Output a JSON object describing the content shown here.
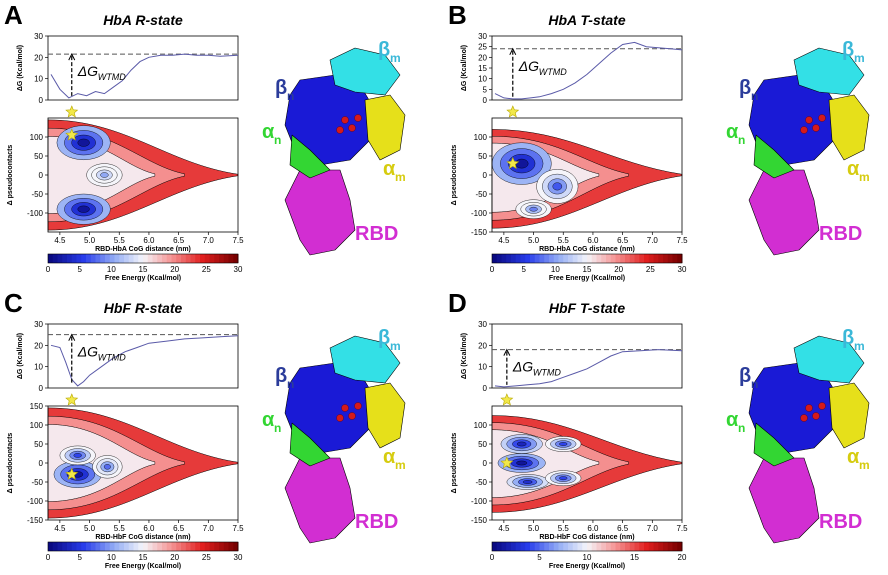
{
  "chart_data": [
    {
      "type": "line",
      "panel": "A",
      "title": "HbA R-state",
      "dg_label": "ΔG",
      "dg_sub": "WTMD",
      "dg_xlim": [
        4.3,
        7.5
      ],
      "dg_ylim": [
        0,
        30
      ],
      "dg_yticks": [
        0,
        10,
        20,
        30
      ],
      "dg_ylabel": "ΔG (Kcal/mol)",
      "dg_ref": 21.5,
      "dg_x": [
        4.35,
        4.5,
        4.65,
        4.8,
        4.95,
        5.1,
        5.25,
        5.4,
        5.55,
        5.7,
        5.85,
        6.0,
        6.2,
        6.4,
        6.6,
        6.8,
        7.0,
        7.2,
        7.5
      ],
      "dg_y": [
        12,
        5,
        1,
        3,
        2,
        4,
        3,
        6,
        9,
        14,
        18,
        20,
        21,
        21,
        21.5,
        21,
        21,
        20.5,
        21
      ],
      "star": [
        4.7,
        105
      ],
      "fe_xlim": [
        4.3,
        7.5
      ],
      "fe_xticks": [
        "4.5",
        "5.0",
        "5.5",
        "6.0",
        "6.5",
        "7.0",
        "7.5"
      ],
      "fe_xlabel": "RBD-HbA CoG distance (nm)",
      "fe_ylim": [
        -150,
        150
      ],
      "fe_yticks": [
        -100,
        -50,
        0,
        50,
        100
      ],
      "fe_ylabel": "Δ pseudocontacts",
      "fe_blobs": [
        [
          4.9,
          85,
          0.45,
          45,
          0.0
        ],
        [
          4.9,
          -90,
          0.45,
          40,
          0.0
        ],
        [
          5.25,
          0,
          0.3,
          30,
          1.0
        ]
      ],
      "fe_shape": {
        "tail_x": 7.5,
        "top": 145,
        "bottom": -145
      },
      "cbar_ticks": [
        0,
        5,
        10,
        15,
        20,
        25,
        30
      ],
      "cbar_label": "Free Energy (Kcal/mol)",
      "labels": {
        "b": "β",
        "b_sub": "m",
        "bn": "β",
        "bn_sub": "n",
        "an": "α",
        "an_sub": "n",
        "am": "α",
        "am_sub": "m",
        "rbd": "RBD"
      }
    },
    {
      "type": "line",
      "panel": "B",
      "title": "HbA T-state",
      "dg_label": "ΔG",
      "dg_sub": "WTMD",
      "dg_xlim": [
        4.3,
        7.5
      ],
      "dg_ylim": [
        0,
        30
      ],
      "dg_yticks": [
        0,
        5,
        10,
        15,
        20,
        25,
        30
      ],
      "dg_ylabel": "ΔG (Kcal/mol)",
      "dg_ref": 24,
      "dg_x": [
        4.35,
        4.5,
        4.65,
        4.8,
        4.95,
        5.1,
        5.3,
        5.5,
        5.7,
        5.9,
        6.1,
        6.3,
        6.5,
        6.7,
        6.9,
        7.1,
        7.3,
        7.5
      ],
      "dg_y": [
        3,
        1,
        0.5,
        0.5,
        1,
        1.5,
        3,
        5,
        8,
        12,
        17,
        22,
        26,
        27,
        25,
        24.5,
        24,
        23.5
      ],
      "star": [
        4.65,
        30
      ],
      "fe_xlim": [
        4.3,
        7.5
      ],
      "fe_xticks": [
        "4.5",
        "5.0",
        "5.5",
        "6.0",
        "6.5",
        "7.0",
        "7.5"
      ],
      "fe_xlabel": "RBD-HbA CoG distance (nm)",
      "fe_ylim": [
        -150,
        150
      ],
      "fe_yticks": [
        -150,
        -100,
        -50,
        0,
        50,
        100
      ],
      "fe_ylabel": "Δ pseudocontacts",
      "fe_blobs": [
        [
          4.8,
          30,
          0.5,
          55,
          0.0
        ],
        [
          5.4,
          -30,
          0.35,
          45,
          0.6
        ],
        [
          5.0,
          -90,
          0.3,
          25,
          0.8
        ]
      ],
      "fe_shape": {
        "tail_x": 7.5,
        "top": 120,
        "bottom": -140
      },
      "cbar_ticks": [
        0,
        5,
        10,
        15,
        20,
        25,
        30
      ],
      "cbar_label": "Free Energy (Kcal/mol)",
      "labels": {
        "b": "β",
        "b_sub": "m",
        "bn": "β",
        "bn_sub": "n",
        "an": "α",
        "an_sub": "n",
        "am": "α",
        "am_sub": "m",
        "rbd": "RBD"
      }
    },
    {
      "type": "line",
      "panel": "C",
      "title": "HbF R-state",
      "dg_label": "ΔG",
      "dg_sub": "WTMD",
      "dg_xlim": [
        4.3,
        7.5
      ],
      "dg_ylim": [
        0,
        30
      ],
      "dg_yticks": [
        0,
        10,
        20,
        30
      ],
      "dg_ylabel": "ΔG (Kcal/mol)",
      "dg_ref": 25,
      "dg_x": [
        4.35,
        4.5,
        4.6,
        4.7,
        4.8,
        4.9,
        5.0,
        5.2,
        5.4,
        5.6,
        5.8,
        6.0,
        6.3,
        6.6,
        6.9,
        7.2,
        7.5
      ],
      "dg_y": [
        20,
        19,
        12,
        4,
        1,
        3,
        6,
        10,
        14,
        17,
        19,
        21,
        22,
        23,
        23.5,
        24,
        24.5
      ],
      "star": [
        4.7,
        -30
      ],
      "fe_xlim": [
        4.3,
        7.5
      ],
      "fe_xticks": [
        "4.5",
        "5.0",
        "5.5",
        "6.0",
        "6.5",
        "7.0",
        "7.5"
      ],
      "fe_xlabel": "RBD-HbF CoG distance (nm)",
      "fe_ylim": [
        -150,
        150
      ],
      "fe_yticks": [
        -150,
        -100,
        -50,
        0,
        50,
        100,
        150
      ],
      "fe_ylabel": "Δ pseudocontacts",
      "fe_blobs": [
        [
          4.8,
          -30,
          0.4,
          35,
          0.0
        ],
        [
          4.8,
          20,
          0.3,
          25,
          0.5
        ],
        [
          5.3,
          -10,
          0.25,
          30,
          0.7
        ]
      ],
      "fe_shape": {
        "tail_x": 7.5,
        "top": 145,
        "bottom": -145
      },
      "cbar_ticks": [
        0,
        5,
        10,
        15,
        20,
        25,
        30
      ],
      "cbar_label": "Free Energy (Kcal/mol)",
      "labels": {
        "b": "β",
        "b_sub": "m",
        "bn": "β",
        "bn_sub": "n",
        "an": "α",
        "an_sub": "n",
        "am": "α",
        "am_sub": "m",
        "rbd": "RBD"
      }
    },
    {
      "type": "line",
      "panel": "D",
      "title": "HbF T-state",
      "dg_label": "ΔG",
      "dg_sub": "WTMD",
      "dg_xlim": [
        4.3,
        7.5
      ],
      "dg_ylim": [
        0,
        30
      ],
      "dg_yticks": [
        0,
        10,
        20,
        30
      ],
      "dg_ylabel": "ΔG (Kcal/mol)",
      "dg_ref": 18,
      "dg_x": [
        4.35,
        4.5,
        4.7,
        4.9,
        5.1,
        5.3,
        5.5,
        5.7,
        5.9,
        6.1,
        6.3,
        6.5,
        6.8,
        7.1,
        7.5
      ],
      "dg_y": [
        1,
        0.5,
        1,
        1.5,
        2,
        3,
        5,
        7,
        9,
        12,
        15,
        17,
        17.5,
        18,
        17.5
      ],
      "star": [
        4.55,
        0
      ],
      "fe_xlim": [
        4.3,
        7.5
      ],
      "fe_xticks": [
        "4.5",
        "5.0",
        "5.5",
        "6.0",
        "6.5",
        "7.0",
        "7.5"
      ],
      "fe_xlabel": "RBD-HbF CoG distance (nm)",
      "fe_ylim": [
        -150,
        150
      ],
      "fe_yticks": [
        -150,
        -100,
        -50,
        0,
        50,
        100
      ],
      "fe_ylabel": "Δ pseudocontacts",
      "fe_blobs": [
        [
          4.8,
          50,
          0.35,
          25,
          0.2
        ],
        [
          4.8,
          0,
          0.4,
          25,
          0.0
        ],
        [
          4.9,
          -50,
          0.35,
          20,
          0.3
        ],
        [
          5.5,
          50,
          0.3,
          20,
          0.5
        ],
        [
          5.5,
          -40,
          0.3,
          20,
          0.5
        ]
      ],
      "fe_shape": {
        "tail_x": 7.5,
        "top": 125,
        "bottom": -130
      },
      "cbar_ticks": [
        0,
        5,
        10,
        15,
        20
      ],
      "cbar_label": "Free Energy (Kcal/mol)",
      "labels": {
        "b": "β",
        "b_sub": "m",
        "bn": "β",
        "bn_sub": "n",
        "an": "α",
        "an_sub": "n",
        "am": "α",
        "am_sub": "m",
        "rbd": "RBD"
      }
    }
  ],
  "colors": {
    "blue": "#1a1ad6",
    "cyan": "#33e0e6",
    "green": "#33d633",
    "yellow": "#e6e01a",
    "red": "#d61a1a",
    "magenta": "#d22ed2",
    "line": "#5a5aa8"
  }
}
